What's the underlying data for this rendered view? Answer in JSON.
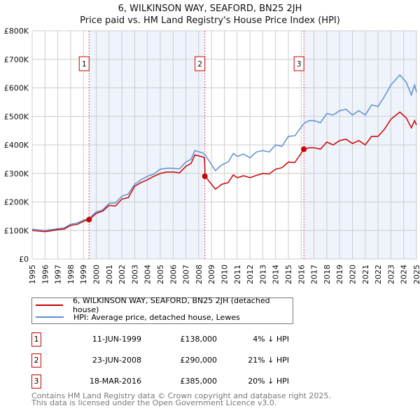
{
  "title": "6, WILKINSON WAY, SEAFORD, BN25 2JH",
  "subtitle": "Price paid vs. HM Land Registry's House Price Index (HPI)",
  "chart_data": {
    "type": "line",
    "xlim": [
      1995,
      2025
    ],
    "ylim": [
      0,
      800000
    ],
    "x_ticks": [
      "1995",
      "1996",
      "1997",
      "1998",
      "1999",
      "2000",
      "2001",
      "2002",
      "2003",
      "2004",
      "2005",
      "2006",
      "2007",
      "2008",
      "2009",
      "2010",
      "2011",
      "2012",
      "2013",
      "2014",
      "2015",
      "2016",
      "2017",
      "2018",
      "2019",
      "2020",
      "2021",
      "2022",
      "2023",
      "2024",
      "2025"
    ],
    "y_ticks": [
      {
        "v": 0,
        "label": "£0"
      },
      {
        "v": 100000,
        "label": "£100K"
      },
      {
        "v": 200000,
        "label": "£200K"
      },
      {
        "v": 300000,
        "label": "£300K"
      },
      {
        "v": 400000,
        "label": "£400K"
      },
      {
        "v": 500000,
        "label": "£500K"
      },
      {
        "v": 600000,
        "label": "£600K"
      },
      {
        "v": 700000,
        "label": "£700K"
      },
      {
        "v": 800000,
        "label": "£800K"
      }
    ],
    "grid": true,
    "series": [
      {
        "name": "6, WILKINSON WAY, SEAFORD, BN25 2JH (detached house)",
        "color": "#cc0000",
        "x": [
          1995,
          1995.5,
          1996,
          1996.5,
          1997,
          1997.5,
          1998,
          1998.5,
          1999,
          1999.45,
          2000,
          2000.5,
          2001,
          2001.5,
          2002,
          2002.5,
          2003,
          2003.5,
          2004,
          2004.5,
          2005,
          2005.5,
          2006,
          2006.5,
          2007,
          2007.4,
          2007.7,
          2008.3,
          2008.45,
          2008.5,
          2009.3,
          2009.8,
          2010.3,
          2010.7,
          2011,
          2011.5,
          2012,
          2012.5,
          2013,
          2013.5,
          2014,
          2014.5,
          2015,
          2015.5,
          2016.21,
          2016.6,
          2017,
          2017.5,
          2018,
          2018.5,
          2019,
          2019.5,
          2020,
          2020.5,
          2021,
          2021.5,
          2022,
          2022.5,
          2023,
          2023.7,
          2024.2,
          2024.6,
          2024.85,
          2025
        ],
        "y": [
          100000,
          98000,
          96000,
          99000,
          103000,
          105000,
          118000,
          121000,
          132000,
          138000,
          160000,
          168000,
          188000,
          186000,
          210000,
          215000,
          255000,
          268000,
          278000,
          290000,
          300000,
          305000,
          305000,
          302000,
          325000,
          335000,
          365000,
          358000,
          355000,
          290000,
          245000,
          262000,
          268000,
          295000,
          285000,
          292000,
          285000,
          293000,
          300000,
          298000,
          315000,
          320000,
          340000,
          338000,
          385000,
          390000,
          390000,
          385000,
          410000,
          400000,
          415000,
          420000,
          405000,
          415000,
          400000,
          430000,
          430000,
          455000,
          490000,
          515000,
          495000,
          460000,
          485000,
          470000
        ]
      },
      {
        "name": "HPI: Average price, detached house, Lewes",
        "color": "#5b8fd0",
        "x": [
          1995,
          1995.5,
          1996,
          1996.5,
          1997,
          1997.5,
          1998,
          1998.5,
          1999,
          1999.45,
          2000,
          2000.5,
          2001,
          2001.5,
          2002,
          2002.5,
          2003,
          2003.5,
          2004,
          2004.5,
          2005,
          2005.5,
          2006,
          2006.5,
          2007,
          2007.4,
          2007.7,
          2008.3,
          2008.5,
          2009.3,
          2009.8,
          2010.3,
          2010.7,
          2011,
          2011.5,
          2012,
          2012.5,
          2013,
          2013.5,
          2014,
          2014.5,
          2015,
          2015.5,
          2016.21,
          2016.6,
          2017,
          2017.5,
          2018,
          2018.5,
          2019,
          2019.5,
          2020,
          2020.5,
          2021,
          2021.5,
          2022,
          2022.5,
          2023,
          2023.7,
          2024.2,
          2024.6,
          2024.85,
          2025
        ],
        "y": [
          105000,
          102000,
          100000,
          103000,
          106000,
          109000,
          122000,
          126000,
          136000,
          143000,
          165000,
          172000,
          195000,
          197000,
          220000,
          228000,
          262000,
          278000,
          290000,
          298000,
          315000,
          318000,
          318000,
          316000,
          340000,
          350000,
          380000,
          372000,
          365000,
          310000,
          330000,
          340000,
          370000,
          360000,
          368000,
          355000,
          375000,
          380000,
          375000,
          400000,
          395000,
          430000,
          432000,
          475000,
          485000,
          485000,
          478000,
          510000,
          505000,
          520000,
          525000,
          505000,
          520000,
          505000,
          540000,
          535000,
          570000,
          610000,
          645000,
          620000,
          575000,
          610000,
          585000
        ]
      }
    ],
    "sales": [
      {
        "label": "1",
        "x": 1999.44,
        "y": 138000,
        "date": "11-JUN-1999",
        "price": "£138,000",
        "hpi": "4% ↓ HPI"
      },
      {
        "label": "2",
        "x": 2008.48,
        "y": 290000,
        "date": "23-JUN-2008",
        "price": "£290,000",
        "hpi": "21% ↓ HPI"
      },
      {
        "label": "3",
        "x": 2016.21,
        "y": 385000,
        "date": "18-MAR-2016",
        "price": "£385,000",
        "hpi": "20% ↓ HPI"
      }
    ]
  },
  "footer": {
    "line1": "Contains HM Land Registry data © Crown copyright and database right 2025.",
    "line2": "This data is licensed under the Open Government Licence v3.0."
  }
}
